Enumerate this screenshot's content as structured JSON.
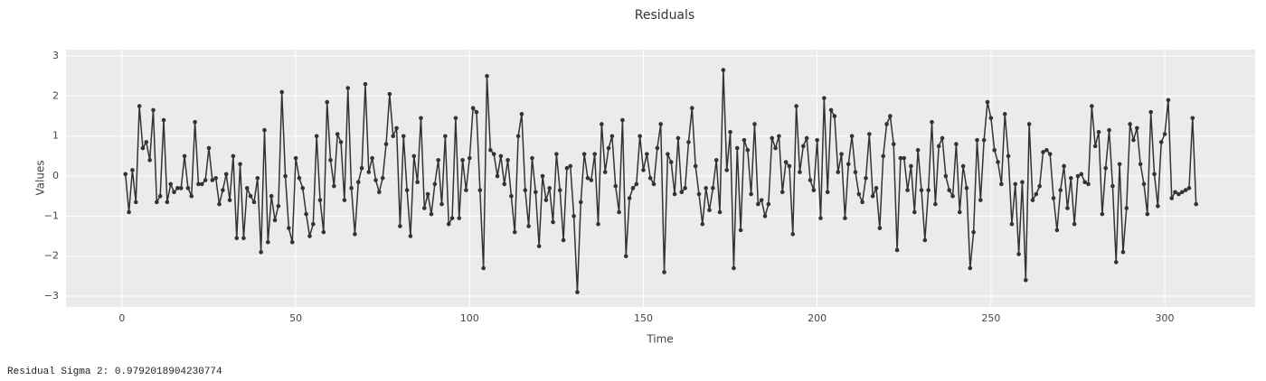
{
  "chart_data": {
    "type": "line",
    "title": "Residuals",
    "x_label": "Time",
    "y_label": "Values",
    "x": [
      1,
      2,
      3,
      4,
      5,
      6,
      7,
      8,
      9,
      10,
      11,
      12,
      13,
      14,
      15,
      16,
      17,
      18,
      19,
      20,
      21,
      22,
      23,
      24,
      25,
      26,
      27,
      28,
      29,
      30,
      31,
      32,
      33,
      34,
      35,
      36,
      37,
      38,
      39,
      40,
      41,
      42,
      43,
      44,
      45,
      46,
      47,
      48,
      49,
      50,
      51,
      52,
      53,
      54,
      55,
      56,
      57,
      58,
      59,
      60,
      61,
      62,
      63,
      64,
      65,
      66,
      67,
      68,
      69,
      70,
      71,
      72,
      73,
      74,
      75,
      76,
      77,
      78,
      79,
      80,
      81,
      82,
      83,
      84,
      85,
      86,
      87,
      88,
      89,
      90,
      91,
      92,
      93,
      94,
      95,
      96,
      97,
      98,
      99,
      100,
      101,
      102,
      103,
      104,
      105,
      106,
      107,
      108,
      109,
      110,
      111,
      112,
      113,
      114,
      115,
      116,
      117,
      118,
      119,
      120,
      121,
      122,
      123,
      124,
      125,
      126,
      127,
      128,
      129,
      130,
      131,
      132,
      133,
      134,
      135,
      136,
      137,
      138,
      139,
      140,
      141,
      142,
      143,
      144,
      145,
      146,
      147,
      148,
      149,
      150,
      151,
      152,
      153,
      154,
      155,
      156,
      157,
      158,
      159,
      160,
      161,
      162,
      163,
      164,
      165,
      166,
      167,
      168,
      169,
      170,
      171,
      172,
      173,
      174,
      175,
      176,
      177,
      178,
      179,
      180,
      181,
      182,
      183,
      184,
      185,
      186,
      187,
      188,
      189,
      190,
      191,
      192,
      193,
      194,
      195,
      196,
      197,
      198,
      199,
      200,
      201,
      202,
      203,
      204,
      205,
      206,
      207,
      208,
      209,
      210,
      211,
      212,
      213,
      214,
      215,
      216,
      217,
      218,
      219,
      220,
      221,
      222,
      223,
      224,
      225,
      226,
      227,
      228,
      229,
      230,
      231,
      232,
      233,
      234,
      235,
      236,
      237,
      238,
      239,
      240,
      241,
      242,
      243,
      244,
      245,
      246,
      247,
      248,
      249,
      250,
      251,
      252,
      253,
      254,
      255,
      256,
      257,
      258,
      259,
      260,
      261,
      262,
      263,
      264,
      265,
      266,
      267,
      268,
      269,
      270,
      271,
      272,
      273,
      274,
      275,
      276,
      277,
      278,
      279,
      280,
      281,
      282,
      283,
      284,
      285,
      286,
      287,
      288,
      289,
      290,
      291,
      292,
      293,
      294,
      295,
      296,
      297,
      298,
      299,
      300,
      301,
      302,
      303,
      304,
      305,
      306,
      307,
      308,
      309
    ],
    "series": [
      {
        "color": "#333333",
        "values": [
          0.05,
          -0.9,
          0.15,
          -0.65,
          1.75,
          0.7,
          0.85,
          0.4,
          1.65,
          -0.65,
          -0.5,
          1.4,
          -0.65,
          -0.2,
          -0.4,
          -0.3,
          -0.3,
          0.5,
          -0.3,
          -0.5,
          1.35,
          -0.2,
          -0.2,
          -0.1,
          0.7,
          -0.1,
          -0.05,
          -0.7,
          -0.35,
          0.05,
          -0.6,
          0.5,
          -1.55,
          0.3,
          -1.55,
          -0.3,
          -0.5,
          -0.65,
          -0.05,
          -1.9,
          1.15,
          -1.65,
          -0.5,
          -1.1,
          -0.75,
          2.1,
          0.0,
          -1.3,
          -1.65,
          0.45,
          -0.05,
          -0.3,
          -0.95,
          -1.5,
          -1.2,
          1.0,
          -0.6,
          -1.4,
          1.85,
          0.4,
          -0.25,
          1.05,
          0.85,
          -0.6,
          2.2,
          -0.3,
          -1.45,
          -0.15,
          0.2,
          2.3,
          0.1,
          0.45,
          -0.1,
          -0.4,
          -0.05,
          0.8,
          2.05,
          1.0,
          1.2,
          -1.25,
          1.0,
          -0.35,
          -1.5,
          0.5,
          -0.15,
          1.45,
          -0.8,
          -0.45,
          -0.95,
          -0.2,
          0.4,
          -0.7,
          1.0,
          -1.2,
          -1.05,
          1.45,
          -1.05,
          0.4,
          -0.35,
          0.45,
          1.7,
          1.6,
          -0.35,
          -2.3,
          2.5,
          0.65,
          0.55,
          0.0,
          0.5,
          -0.2,
          0.4,
          -0.5,
          -1.4,
          1.0,
          1.55,
          -0.35,
          -1.25,
          0.45,
          -0.4,
          -1.75,
          0.0,
          -0.6,
          -0.3,
          -1.15,
          0.55,
          -0.35,
          -1.6,
          0.2,
          0.25,
          -1.0,
          -2.9,
          -0.65,
          0.55,
          -0.05,
          -0.1,
          0.55,
          -1.2,
          1.3,
          0.1,
          0.7,
          1.0,
          -0.25,
          -0.9,
          1.4,
          -2.0,
          -0.55,
          -0.3,
          -0.2,
          1.0,
          0.15,
          0.55,
          -0.05,
          -0.2,
          0.7,
          1.3,
          -2.4,
          0.55,
          0.35,
          -0.45,
          0.95,
          -0.4,
          -0.3,
          0.85,
          1.7,
          0.25,
          -0.45,
          -1.2,
          -0.3,
          -0.85,
          -0.3,
          0.4,
          -0.9,
          2.65,
          0.15,
          1.1,
          -2.3,
          0.7,
          -1.35,
          0.9,
          0.65,
          -0.45,
          1.3,
          -0.7,
          -0.6,
          -1.0,
          -0.7,
          0.95,
          0.7,
          1.0,
          -0.4,
          0.35,
          0.25,
          -1.45,
          1.75,
          0.1,
          0.75,
          0.95,
          -0.1,
          -0.35,
          0.9,
          -1.05,
          1.95,
          -0.4,
          1.65,
          1.5,
          0.1,
          0.55,
          -1.05,
          0.3,
          1.0,
          0.1,
          -0.45,
          -0.65,
          -0.05,
          1.05,
          -0.5,
          -0.3,
          -1.3,
          0.5,
          1.3,
          1.5,
          0.8,
          -1.85,
          0.45,
          0.45,
          -0.35,
          0.25,
          -0.9,
          0.65,
          -0.35,
          -1.6,
          -0.35,
          1.35,
          -0.7,
          0.75,
          0.95,
          0.0,
          -0.35,
          -0.5,
          0.8,
          -0.9,
          0.25,
          -0.3,
          -2.3,
          -1.4,
          0.9,
          -0.6,
          0.9,
          1.85,
          1.45,
          0.65,
          0.35,
          -0.2,
          1.55,
          0.5,
          -1.2,
          -0.2,
          -1.95,
          -0.15,
          -2.6,
          1.3,
          -0.6,
          -0.45,
          -0.25,
          0.6,
          0.65,
          0.55,
          -0.55,
          -1.35,
          -0.35,
          0.25,
          -0.8,
          -0.05,
          -1.2,
          0.0,
          0.05,
          -0.15,
          -0.2,
          1.75,
          0.75,
          1.1,
          -0.95,
          0.2,
          1.15,
          -0.25,
          -2.15,
          0.3,
          -1.9,
          -0.8,
          1.3,
          0.9,
          1.2,
          0.3,
          -0.2,
          -0.95,
          1.6,
          0.05,
          -0.75,
          0.85,
          1.05,
          1.9,
          -0.55,
          -0.4,
          -0.45,
          -0.4,
          -0.35,
          -0.3,
          1.45,
          -0.7
        ]
      }
    ],
    "xlim": [
      -16.1,
      326
    ],
    "ylim": [
      -3.27,
      3.16
    ],
    "xticks": [
      0,
      50,
      100,
      150,
      200,
      250,
      300
    ],
    "yticks": [
      {
        "value": -3,
        "label": "−3"
      },
      {
        "value": -2,
        "label": "−2"
      },
      {
        "value": -1,
        "label": "−1"
      },
      0,
      1,
      2,
      3
    ],
    "grid": true,
    "markers": true
  },
  "footer_text": "Residual Sigma 2: 0.9792018904230774"
}
